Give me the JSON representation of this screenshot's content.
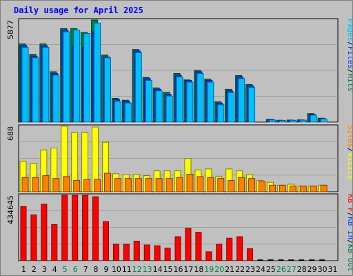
{
  "title": "Daily usage for April 2025",
  "colors": {
    "background": "#c0c0c0",
    "plot": "#c0c0c0",
    "grid": "#a0a0a0",
    "hits": "#00c0ff",
    "files": "#0040ff",
    "pages": "#008040",
    "visits": "#ffff00",
    "sites": "#ff8000",
    "kbin": "#ff0000",
    "kbout": "#ff0000",
    "weekend": "#008040",
    "weekday": "#000000"
  },
  "chart_data": [
    {
      "type": "bar",
      "panel": "top",
      "ymax_label": "5877",
      "ylim": [
        0,
        5877
      ],
      "right_labels": [
        {
          "text": "Pages",
          "color": "#00c0ff"
        },
        {
          "text": "/",
          "color": "#000000"
        },
        {
          "text": "Files",
          "color": "#0040ff"
        },
        {
          "text": "/",
          "color": "#000000"
        },
        {
          "text": "Hits",
          "color": "#008040"
        }
      ],
      "categories": [
        "1",
        "2",
        "3",
        "4",
        "5",
        "6",
        "7",
        "8",
        "9",
        "10",
        "11",
        "12",
        "13",
        "14",
        "15",
        "16",
        "17",
        "18",
        "19",
        "20",
        "21",
        "22",
        "23",
        "24",
        "25",
        "26",
        "27",
        "28",
        "29",
        "30",
        "31"
      ],
      "series": [
        {
          "name": "Hits",
          "values": [
            4500,
            3900,
            4500,
            2900,
            5380,
            5380,
            5160,
            5877,
            3860,
            1370,
            1260,
            4180,
            2570,
            1970,
            1720,
            2800,
            2430,
            2980,
            2480,
            1170,
            1890,
            2680,
            2170,
            null,
            160,
            110,
            120,
            130,
            490,
            230,
            null
          ]
        },
        {
          "name": "Files",
          "values": [
            4400,
            3800,
            4400,
            2800,
            5300,
            4400,
            4300,
            5200,
            3750,
            1300,
            1200,
            4100,
            2500,
            1900,
            1600,
            2700,
            2400,
            2900,
            2400,
            1100,
            1800,
            2600,
            2100,
            null,
            140,
            100,
            110,
            120,
            440,
            200,
            null
          ]
        },
        {
          "name": "Pages",
          "values": [
            4300,
            3700,
            4300,
            2700,
            5200,
            5300,
            5100,
            5700,
            3700,
            1200,
            1100,
            4000,
            2400,
            1800,
            1500,
            2600,
            2300,
            2800,
            2300,
            1000,
            1700,
            2500,
            2000,
            null,
            120,
            90,
            100,
            110,
            400,
            180,
            null
          ]
        }
      ]
    },
    {
      "type": "bar",
      "panel": "middle",
      "ymax_label": "688",
      "ylim": [
        0,
        688
      ],
      "right_labels": [
        {
          "text": "Sites",
          "color": "#ff8000"
        },
        {
          "text": "/",
          "color": "#000000"
        },
        {
          "text": "Visits",
          "color": "#ffff00"
        }
      ],
      "categories": [
        "1",
        "2",
        "3",
        "4",
        "5",
        "6",
        "7",
        "8",
        "9",
        "10",
        "11",
        "12",
        "13",
        "14",
        "15",
        "16",
        "17",
        "18",
        "19",
        "20",
        "21",
        "22",
        "23",
        "24",
        "25",
        "26",
        "27",
        "28",
        "29",
        "30",
        "31"
      ],
      "series": [
        {
          "name": "Visits",
          "values": [
            320,
            300,
            440,
            460,
            688,
            620,
            620,
            680,
            520,
            190,
            180,
            180,
            170,
            220,
            220,
            220,
            350,
            230,
            240,
            160,
            240,
            220,
            180,
            120,
            100,
            70,
            80,
            60,
            60,
            70,
            null
          ]
        },
        {
          "name": "Sites",
          "values": [
            150,
            150,
            170,
            140,
            160,
            120,
            130,
            130,
            195,
            140,
            140,
            140,
            140,
            140,
            140,
            150,
            185,
            160,
            150,
            140,
            120,
            150,
            140,
            110,
            70,
            70,
            60,
            60,
            60,
            70,
            null
          ]
        }
      ]
    },
    {
      "type": "bar",
      "panel": "bottom",
      "ymax_label": "434645",
      "ylim": [
        0,
        434645
      ],
      "right_labels": [
        {
          "text": "KB F",
          "color": "#ff0000"
        },
        {
          "text": "/",
          "color": "#000000"
        },
        {
          "text": "KB In",
          "color": "#0040ff"
        },
        {
          "text": "/",
          "color": "#000000"
        },
        {
          "text": "KB Out",
          "color": "#008040"
        }
      ],
      "categories": [
        "1",
        "2",
        "3",
        "4",
        "5",
        "6",
        "7",
        "8",
        "9",
        "10",
        "11",
        "12",
        "13",
        "14",
        "15",
        "16",
        "17",
        "18",
        "19",
        "20",
        "21",
        "22",
        "23",
        "24",
        "25",
        "26",
        "27",
        "28",
        "29",
        "30",
        "31"
      ],
      "series": [
        {
          "name": "KB F",
          "values": [
            360000,
            305000,
            375000,
            240000,
            434645,
            434645,
            434645,
            425000,
            260000,
            110000,
            110000,
            130000,
            105000,
            100000,
            85000,
            160000,
            215000,
            190000,
            60000,
            110000,
            150000,
            160000,
            80000,
            0,
            0,
            0,
            0,
            0,
            0,
            0,
            null
          ]
        }
      ]
    }
  ],
  "days": [
    {
      "label": "1",
      "weekend": false
    },
    {
      "label": "2",
      "weekend": false
    },
    {
      "label": "3",
      "weekend": false
    },
    {
      "label": "4",
      "weekend": false
    },
    {
      "label": "5",
      "weekend": true
    },
    {
      "label": "6",
      "weekend": true
    },
    {
      "label": "7",
      "weekend": false
    },
    {
      "label": "8",
      "weekend": false
    },
    {
      "label": "9",
      "weekend": false
    },
    {
      "label": "10",
      "weekend": false
    },
    {
      "label": "11",
      "weekend": false
    },
    {
      "label": "12",
      "weekend": true
    },
    {
      "label": "13",
      "weekend": true
    },
    {
      "label": "14",
      "weekend": false
    },
    {
      "label": "15",
      "weekend": false
    },
    {
      "label": "16",
      "weekend": false
    },
    {
      "label": "17",
      "weekend": false
    },
    {
      "label": "18",
      "weekend": false
    },
    {
      "label": "19",
      "weekend": true
    },
    {
      "label": "20",
      "weekend": true
    },
    {
      "label": "21",
      "weekend": false
    },
    {
      "label": "22",
      "weekend": false
    },
    {
      "label": "23",
      "weekend": false
    },
    {
      "label": "24",
      "weekend": false
    },
    {
      "label": "25",
      "weekend": false
    },
    {
      "label": "26",
      "weekend": true
    },
    {
      "label": "27",
      "weekend": true
    },
    {
      "label": "28",
      "weekend": false
    },
    {
      "label": "29",
      "weekend": false
    },
    {
      "label": "30",
      "weekend": false
    },
    {
      "label": "31",
      "weekend": false
    }
  ]
}
